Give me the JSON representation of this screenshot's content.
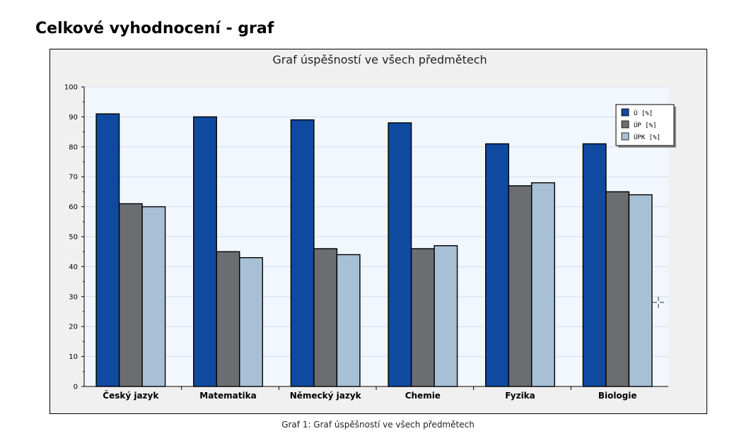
{
  "page": {
    "heading": "Celkové vyhodnocení - graf",
    "caption": "Graf 1: Graf úspěšností ve všech předmětech"
  },
  "chart_data": {
    "type": "bar",
    "title": "Graf úspěšností ve všech předmětech",
    "xlabel": "",
    "ylabel": "",
    "ylim": [
      0,
      100
    ],
    "yticks": [
      0,
      10,
      20,
      30,
      40,
      50,
      60,
      70,
      80,
      90,
      100
    ],
    "categories": [
      "Český jazyk",
      "Matematika",
      "Německý jazyk",
      "Chemie",
      "Fyzika",
      "Biologie"
    ],
    "series": [
      {
        "name": "Ú [%]",
        "color": "#0f4aa0",
        "values": [
          91,
          90,
          89,
          88,
          81,
          81
        ]
      },
      {
        "name": "ÚP [%]",
        "color": "#6b6d70",
        "values": [
          61,
          45,
          46,
          46,
          67,
          65
        ]
      },
      {
        "name": "ÚPK [%]",
        "color": "#a7c0d6",
        "values": [
          60,
          43,
          44,
          47,
          68,
          64
        ]
      }
    ],
    "grid": true,
    "legend_position": "top-right",
    "plot_background": "#f1f7fd"
  }
}
